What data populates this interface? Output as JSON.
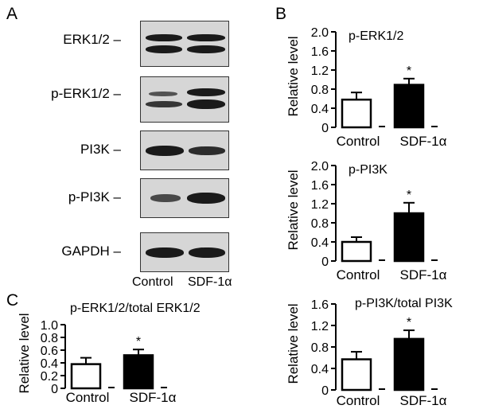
{
  "panels": {
    "a": "A",
    "b": "B",
    "c": "C"
  },
  "blots": {
    "rows": [
      {
        "label": "ERK1/2 –",
        "lanes": [
          0.9,
          0.9
        ]
      },
      {
        "label": "p-ERK1/2 –",
        "lanes": [
          0.55,
          1.0
        ]
      },
      {
        "label": "PI3K –",
        "lanes": [
          0.95,
          0.85
        ]
      },
      {
        "label": "p-PI3K –",
        "lanes": [
          0.6,
          1.0
        ]
      },
      {
        "label": "GAPDH –",
        "lanes": [
          0.95,
          0.95
        ]
      }
    ],
    "lane_labels": [
      "Control",
      "SDF-1α"
    ]
  },
  "chart_data": [
    {
      "type": "bar",
      "title": "p-ERK1/2",
      "ylabel": "Relative level",
      "categories": [
        "Control",
        "SDF-1α"
      ],
      "values": [
        0.58,
        0.89
      ],
      "errors": [
        0.15,
        0.13
      ],
      "colors": [
        "#ffffff",
        "#000000"
      ],
      "significance": [
        "",
        "*"
      ],
      "yticks": [
        "0",
        "0.4",
        "0.8",
        "1.2",
        "1.6",
        "2.0"
      ],
      "ylim": [
        0,
        2.0
      ]
    },
    {
      "type": "bar",
      "title": "p-PI3K",
      "ylabel": "Relative level",
      "categories": [
        "Control",
        "SDF-1α"
      ],
      "values": [
        0.4,
        1.0
      ],
      "errors": [
        0.1,
        0.22
      ],
      "colors": [
        "#ffffff",
        "#000000"
      ],
      "significance": [
        "",
        "*"
      ],
      "yticks": [
        "0",
        "0.4",
        "0.8",
        "1.2",
        "1.6",
        "2.0"
      ],
      "ylim": [
        0,
        2.0
      ]
    },
    {
      "type": "bar",
      "title": "p-ERK1/2/total ERK1/2",
      "ylabel": "Relative level",
      "categories": [
        "Control",
        "SDF-1α"
      ],
      "values": [
        0.38,
        0.52
      ],
      "errors": [
        0.1,
        0.09
      ],
      "colors": [
        "#ffffff",
        "#000000"
      ],
      "significance": [
        "",
        "*"
      ],
      "yticks": [
        "0",
        "0.2",
        "0.4",
        "0.6",
        "0.8",
        "1.0"
      ],
      "ylim": [
        0,
        1.0
      ]
    },
    {
      "type": "bar",
      "title": "p-PI3K/total PI3K",
      "ylabel": "Relative level",
      "categories": [
        "Control",
        "SDF-1α"
      ],
      "values": [
        0.57,
        0.95
      ],
      "errors": [
        0.14,
        0.16
      ],
      "colors": [
        "#ffffff",
        "#000000"
      ],
      "significance": [
        "",
        "*"
      ],
      "yticks": [
        "0",
        "0.4",
        "0.8",
        "1.2",
        "1.6"
      ],
      "ylim": [
        0,
        1.6
      ]
    }
  ]
}
